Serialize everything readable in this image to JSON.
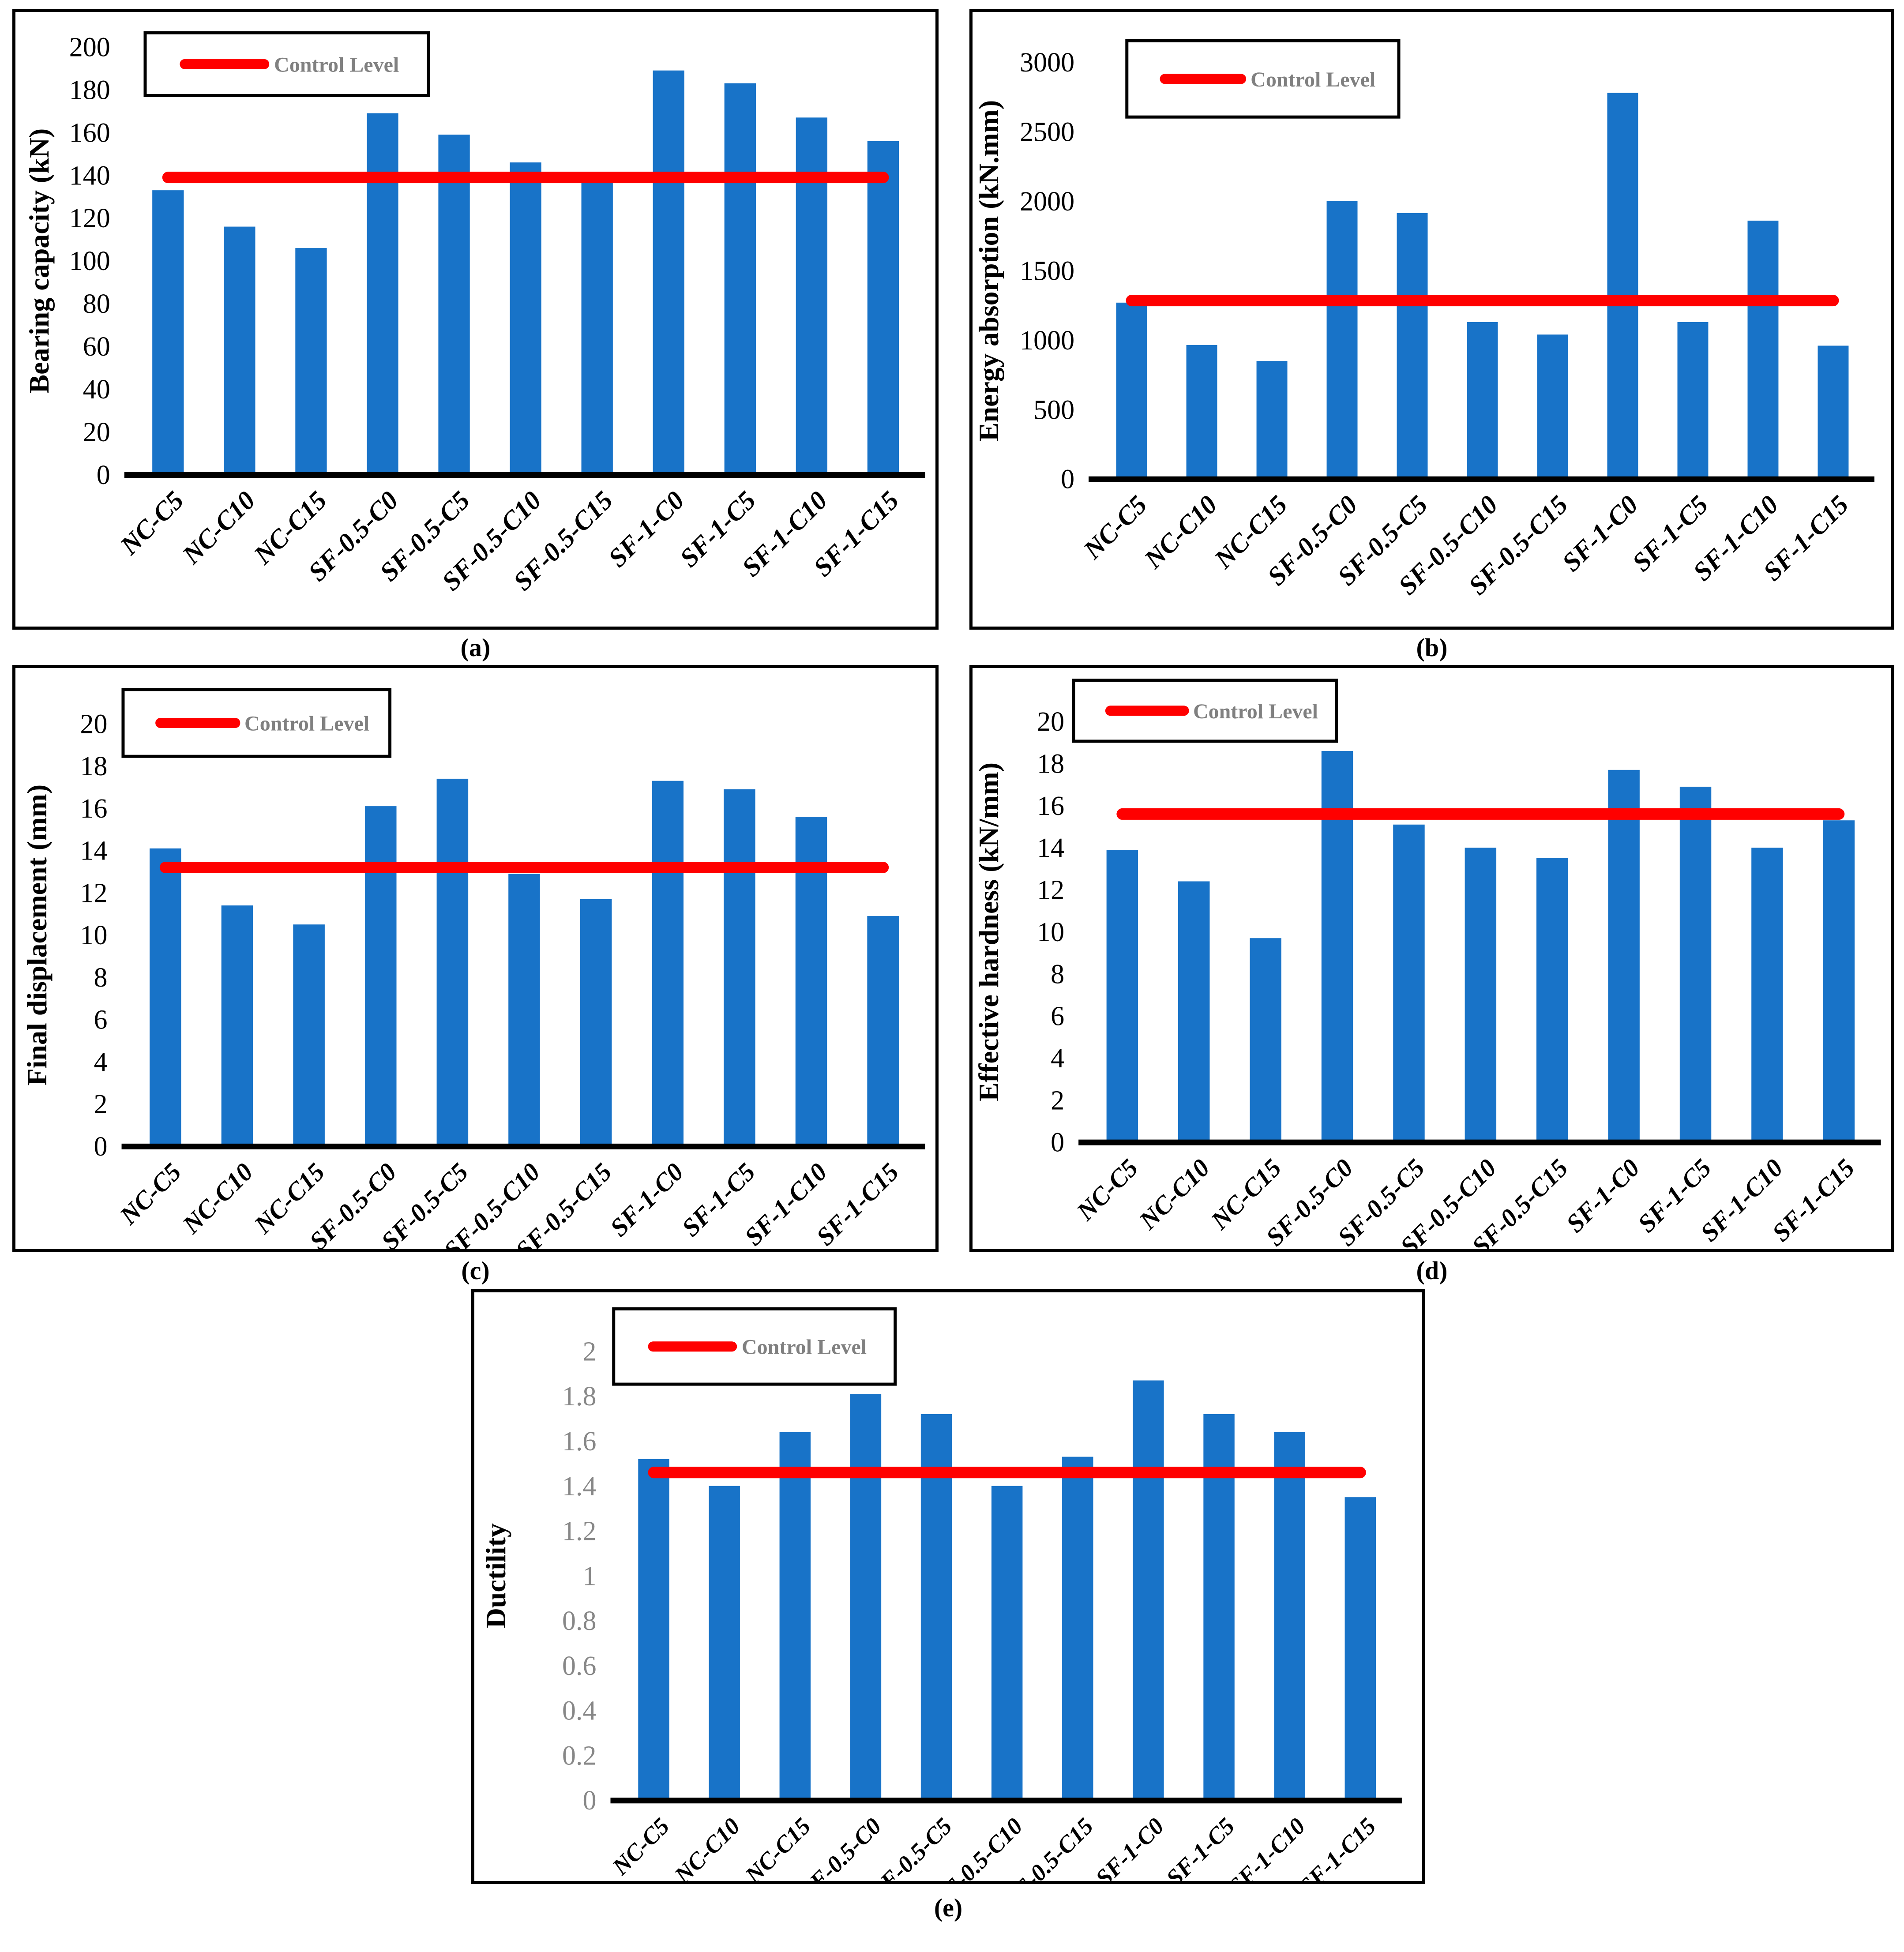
{
  "figure": {
    "background": "#ffffff",
    "description_visible_text_only": true
  },
  "colors": {
    "bar": "#1873C8",
    "control_line": "#FF0000",
    "legend_text": "#808080",
    "axis": "#000000",
    "tick_label_black": "#000000",
    "tick_label_gray": "#878787",
    "legend_border": "#000000",
    "chart_border": "#000000"
  },
  "legend": {
    "label": "Control Level"
  },
  "categories": [
    "NC-C5",
    "NC-C10",
    "NC-C15",
    "SF-0.5-C0",
    "SF-0.5-C5",
    "SF-0.5-C10",
    "SF-0.5-C15",
    "SF-1-C0",
    "SF-1-C5",
    "SF-1-C10",
    "SF-1-C15"
  ],
  "chart_data": [
    {
      "panel_label": "(a)",
      "type": "bar",
      "title": "",
      "xlabel": "",
      "ylabel": "Bearing capacity (kN)",
      "ylim": [
        0,
        200
      ],
      "ytick_step": 20,
      "ytick_labels": [
        "200",
        "180",
        "160",
        "140",
        "120",
        "100",
        "80",
        "60",
        "40",
        "20",
        "0"
      ],
      "values": [
        133,
        116,
        106,
        169,
        159,
        146,
        139,
        189,
        183,
        167,
        156
      ],
      "control_level": 139,
      "legend_label": "Control Level",
      "legend_position": "top-left",
      "grid": false,
      "tick_label_color": "#000000"
    },
    {
      "panel_label": "(b)",
      "type": "bar",
      "title": "",
      "xlabel": "",
      "ylabel": "Energy absorption (kN.mm)",
      "ylim": [
        0,
        3000
      ],
      "ytick_step": 500,
      "ytick_labels": [
        "3000",
        "2500",
        "2000",
        "1500",
        "1000",
        "500",
        "0"
      ],
      "values": [
        1270,
        965,
        850,
        2000,
        1915,
        1130,
        1040,
        2780,
        1130,
        1860,
        960
      ],
      "control_level": 1285,
      "legend_label": "Control Level",
      "legend_position": "top-left",
      "grid": false,
      "tick_label_color": "#000000"
    },
    {
      "panel_label": "(c)",
      "type": "bar",
      "title": "",
      "xlabel": "",
      "ylabel": "Final displacement (mm)",
      "ylim": [
        0,
        20
      ],
      "ytick_step": 2,
      "ytick_labels": [
        "20",
        "18",
        "16",
        "14",
        "12",
        "10",
        "8",
        "6",
        "4",
        "2",
        "0"
      ],
      "values": [
        14.1,
        11.4,
        10.5,
        16.1,
        17.4,
        12.9,
        11.7,
        17.3,
        16.9,
        15.6,
        10.9
      ],
      "control_level": 13.2,
      "legend_label": "Control Level",
      "legend_position": "top-left",
      "grid": false,
      "tick_label_color": "#000000"
    },
    {
      "panel_label": "(d)",
      "type": "bar",
      "title": "",
      "xlabel": "",
      "ylabel": "Effective hardness (kN/mm)",
      "ylim": [
        0,
        20
      ],
      "ytick_step": 2,
      "ytick_labels": [
        "20",
        "18",
        "16",
        "14",
        "12",
        "10",
        "8",
        "6",
        "4",
        "2",
        "0"
      ],
      "values": [
        13.9,
        12.4,
        9.7,
        18.6,
        15.1,
        14.0,
        13.5,
        17.7,
        16.9,
        14.0,
        15.3
      ],
      "control_level": 15.6,
      "legend_label": "Control Level",
      "legend_position": "top-left",
      "grid": false,
      "tick_label_color": "#000000"
    },
    {
      "panel_label": "(e)",
      "type": "bar",
      "title": "",
      "xlabel": "",
      "ylabel": "Ductility",
      "ylim": [
        0,
        2
      ],
      "ytick_step": 0.2,
      "ytick_labels": [
        "2",
        "1.8",
        "1.6",
        "1.4",
        "1.2",
        "1",
        "0.8",
        "0.6",
        "0.4",
        "0.2",
        "0"
      ],
      "values": [
        1.52,
        1.4,
        1.64,
        1.81,
        1.72,
        1.4,
        1.53,
        1.87,
        1.72,
        1.64,
        1.35
      ],
      "control_level": 1.46,
      "legend_label": "Control Level",
      "legend_position": "top-left",
      "grid": false,
      "tick_label_color": "#878787"
    }
  ]
}
